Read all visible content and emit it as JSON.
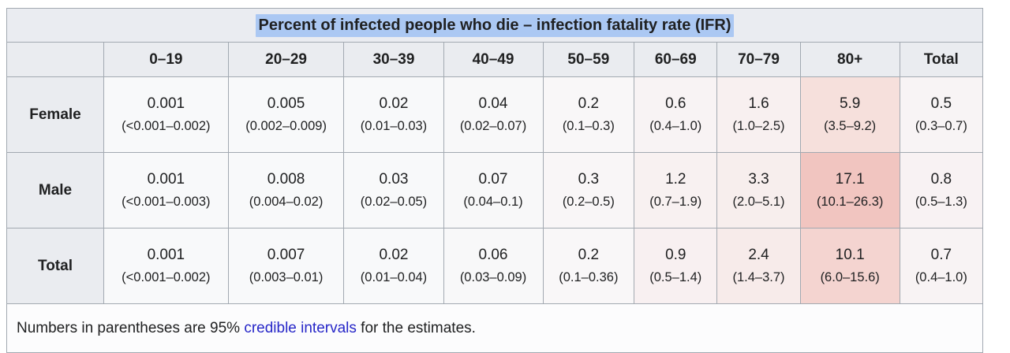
{
  "title": {
    "text": "Percent of infected people who die – infection fatality rate (IFR)",
    "highlight_color": "#abc8f3"
  },
  "columns": [
    "0–19",
    "20–29",
    "30–39",
    "40–49",
    "50–59",
    "60–69",
    "70–79",
    "80+",
    "Total"
  ],
  "rows": [
    {
      "label": "Female",
      "cells": [
        {
          "value": "0.001",
          "interval": "(<0.001–0.002)",
          "bg": "#f8f9fa"
        },
        {
          "value": "0.005",
          "interval": "(0.002–0.009)",
          "bg": "#f8f9fa"
        },
        {
          "value": "0.02",
          "interval": "(0.01–0.03)",
          "bg": "#f8f9fa"
        },
        {
          "value": "0.04",
          "interval": "(0.02–0.07)",
          "bg": "#f8f8f9"
        },
        {
          "value": "0.2",
          "interval": "(0.1–0.3)",
          "bg": "#f9f7f8"
        },
        {
          "value": "0.6",
          "interval": "(0.4–1.0)",
          "bg": "#f8f3f4"
        },
        {
          "value": "1.6",
          "interval": "(1.0–2.5)",
          "bg": "#f8f0f0"
        },
        {
          "value": "5.9",
          "interval": "(3.5–9.2)",
          "bg": "#f6e0dc"
        },
        {
          "value": "0.5",
          "interval": "(0.3–0.7)",
          "bg": "#f8f4f5"
        }
      ]
    },
    {
      "label": "Male",
      "cells": [
        {
          "value": "0.001",
          "interval": "(<0.001–0.003)",
          "bg": "#f8f9fa"
        },
        {
          "value": "0.008",
          "interval": "(0.004–0.02)",
          "bg": "#f8f9fa"
        },
        {
          "value": "0.03",
          "interval": "(0.02–0.05)",
          "bg": "#f8f9fa"
        },
        {
          "value": "0.07",
          "interval": "(0.04–0.1)",
          "bg": "#f8f8f9"
        },
        {
          "value": "0.3",
          "interval": "(0.2–0.5)",
          "bg": "#f9f6f7"
        },
        {
          "value": "1.2",
          "interval": "(0.7–1.9)",
          "bg": "#f8f1f1"
        },
        {
          "value": "3.3",
          "interval": "(2.0–5.1)",
          "bg": "#f7eeed"
        },
        {
          "value": "17.1",
          "interval": "(10.1–26.3)",
          "bg": "#f1c5c0"
        },
        {
          "value": "0.8",
          "interval": "(0.5–1.3)",
          "bg": "#f8f2f3"
        }
      ]
    },
    {
      "label": "Total",
      "cells": [
        {
          "value": "0.001",
          "interval": "(<0.001–0.002)",
          "bg": "#f8f9fa"
        },
        {
          "value": "0.007",
          "interval": "(0.003–0.01)",
          "bg": "#f8f9fa"
        },
        {
          "value": "0.02",
          "interval": "(0.01–0.04)",
          "bg": "#f8f9fa"
        },
        {
          "value": "0.06",
          "interval": "(0.03–0.09)",
          "bg": "#f8f8f9"
        },
        {
          "value": "0.2",
          "interval": "(0.1–0.36)",
          "bg": "#f9f7f8"
        },
        {
          "value": "0.9",
          "interval": "(0.5–1.4)",
          "bg": "#f8f0f1"
        },
        {
          "value": "2.4",
          "interval": "(1.4–3.7)",
          "bg": "#f7ebea"
        },
        {
          "value": "10.1",
          "interval": "(6.0–15.6)",
          "bg": "#f4d4d0"
        },
        {
          "value": "0.7",
          "interval": "(0.4–1.0)",
          "bg": "#f8f3f4"
        }
      ]
    }
  ],
  "footer": {
    "prefix": "Numbers in parentheses are 95% ",
    "link": "credible intervals",
    "suffix": " for the estimates.",
    "link_color": "#2727c8"
  },
  "colors": {
    "header_bg": "#eaecf0",
    "caption_bg": "#eaecf1",
    "border": "#a2a9b1",
    "cell_bg_default": "#f8f9fa",
    "footer_bg": "#fcfcfd",
    "text": "#202122"
  },
  "chart_data": {
    "type": "table",
    "title": "Percent of infected people who die – infection fatality rate (IFR)",
    "categories": [
      "0–19",
      "20–29",
      "30–39",
      "40–49",
      "50–59",
      "60–69",
      "70–79",
      "80+",
      "Total"
    ],
    "series": [
      {
        "name": "Female",
        "values": [
          0.001,
          0.005,
          0.02,
          0.04,
          0.2,
          0.6,
          1.6,
          5.9,
          0.5
        ]
      },
      {
        "name": "Male",
        "values": [
          0.001,
          0.008,
          0.03,
          0.07,
          0.3,
          1.2,
          3.3,
          17.1,
          0.8
        ]
      },
      {
        "name": "Total",
        "values": [
          0.001,
          0.007,
          0.02,
          0.06,
          0.2,
          0.9,
          2.4,
          10.1,
          0.7
        ]
      }
    ],
    "note": "Numbers in parentheses are 95% credible intervals for the estimates."
  }
}
